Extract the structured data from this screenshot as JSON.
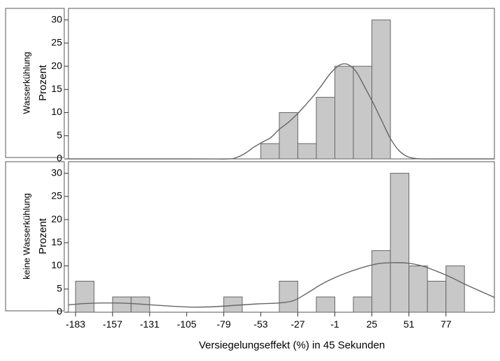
{
  "chart_data": {
    "type": "bar",
    "xlabel": "Versiegelungseffekt (%) in 45 Sekunden",
    "ylabel": "Prozent",
    "x_ticks": [
      -183,
      -157,
      -131,
      -105,
      -79,
      -53,
      -27,
      -1,
      25,
      51,
      77
    ],
    "y_ticks": [
      0,
      5,
      10,
      15,
      20,
      25,
      30
    ],
    "xlim": [
      -188,
      111
    ],
    "ylim": [
      0,
      32.5
    ],
    "bin_width": 13,
    "bar_color": "#c8c8c8",
    "curve_color": "#666666",
    "panels": [
      {
        "strip": "Wasserkühlung",
        "bins": [
          {
            "from": -53,
            "to": -40,
            "value": 3.3
          },
          {
            "from": -40,
            "to": -27,
            "value": 10
          },
          {
            "from": -27,
            "to": -14,
            "value": 3.3
          },
          {
            "from": -14,
            "to": -1,
            "value": 13.3
          },
          {
            "from": -1,
            "to": 12,
            "value": 20
          },
          {
            "from": 12,
            "to": 25,
            "value": 20
          },
          {
            "from": 25,
            "to": 38,
            "value": 30
          }
        ],
        "density": {
          "x": [
            -188,
            -100,
            -76,
            -70,
            -64,
            -58,
            -52,
            -46,
            -40,
            -34,
            -28,
            -22,
            -16,
            -10,
            -4,
            2,
            8,
            14,
            20,
            26,
            32,
            38,
            44,
            50,
            56,
            62,
            68,
            111
          ],
          "y": [
            0,
            0,
            0,
            0.3,
            1.2,
            2.5,
            3.6,
            4.6,
            6.4,
            7.8,
            9.5,
            11.5,
            13.6,
            16,
            18.5,
            20.2,
            20.4,
            18.8,
            15.5,
            12,
            8.2,
            4.4,
            1.8,
            0.5,
            0.08,
            0,
            0,
            0
          ]
        }
      },
      {
        "strip": "keine Wasserkühlung",
        "bins": [
          {
            "from": -183,
            "to": -170,
            "value": 6.7
          },
          {
            "from": -157,
            "to": -144,
            "value": 3.3
          },
          {
            "from": -144,
            "to": -131,
            "value": 3.3
          },
          {
            "from": -79,
            "to": -66,
            "value": 3.3
          },
          {
            "from": -40,
            "to": -27,
            "value": 6.7
          },
          {
            "from": -14,
            "to": -1,
            "value": 3.3
          },
          {
            "from": 12,
            "to": 25,
            "value": 3.3
          },
          {
            "from": 25,
            "to": 38,
            "value": 13.3
          },
          {
            "from": 38,
            "to": 51,
            "value": 30
          },
          {
            "from": 51,
            "to": 64,
            "value": 10
          },
          {
            "from": 64,
            "to": 77,
            "value": 6.7
          },
          {
            "from": 77,
            "to": 90,
            "value": 10
          }
        ],
        "density": {
          "x": [
            -188,
            -175,
            -160,
            -145,
            -130,
            -115,
            -100,
            -85,
            -70,
            -55,
            -40,
            -30,
            -20,
            -10,
            0,
            10,
            20,
            30,
            40,
            50,
            60,
            70,
            80,
            90,
            100,
            111
          ],
          "y": [
            1.6,
            1.9,
            2.0,
            1.9,
            1.6,
            1.3,
            1.1,
            1.2,
            1.5,
            1.8,
            2.0,
            2.5,
            4.2,
            6.1,
            7.6,
            8.8,
            9.8,
            10.5,
            10.7,
            10.6,
            10.0,
            8.9,
            7.6,
            6.1,
            4.7,
            3.2
          ]
        }
      }
    ]
  }
}
